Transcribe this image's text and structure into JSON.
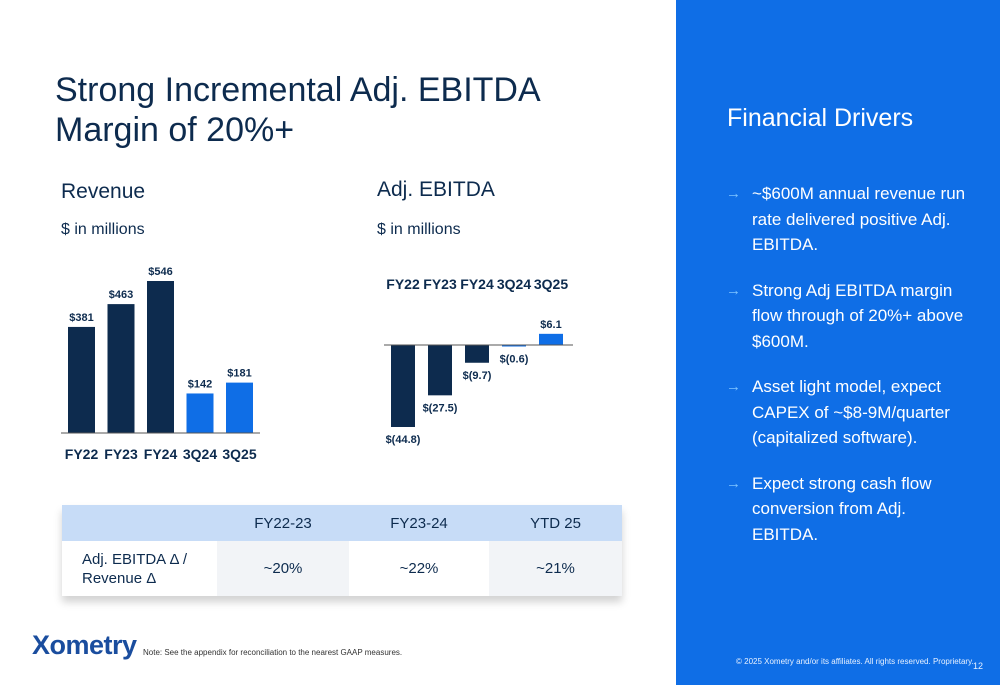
{
  "title_line1": "Strong Incremental Adj. EBITDA",
  "title_line2": "Margin of 20%+",
  "colors": {
    "dark": "#0d2b4e",
    "accent": "#0f6ee6",
    "panel": "#0f6ee6",
    "table_header": "#c7dcf7"
  },
  "chart_data": [
    {
      "type": "bar",
      "title": "Revenue",
      "subtitle": "$ in millions",
      "categories": [
        "FY22",
        "FY23",
        "FY24",
        "3Q24",
        "3Q25"
      ],
      "values": [
        381,
        463,
        546,
        142,
        181
      ],
      "labels": [
        "$381",
        "$463",
        "$546",
        "$142",
        "$181"
      ],
      "highlight": [
        false,
        false,
        false,
        true,
        true
      ],
      "ylim": [
        0,
        546
      ],
      "xlabel": "",
      "ylabel": ""
    },
    {
      "type": "bar",
      "title": "Adj. EBITDA",
      "subtitle": "$ in millions",
      "categories": [
        "FY22",
        "FY23",
        "FY24",
        "3Q24",
        "3Q25"
      ],
      "values": [
        -44.8,
        -27.5,
        -9.7,
        -0.6,
        6.1
      ],
      "labels": [
        "$(44.8)",
        "$(27.5)",
        "$(9.7)",
        "$(0.6)",
        "$6.1"
      ],
      "highlight": [
        false,
        false,
        false,
        true,
        true
      ],
      "ylim": [
        -44.8,
        6.1
      ],
      "xlabel": "",
      "ylabel": ""
    }
  ],
  "table": {
    "headers": [
      "",
      "FY22-23",
      "FY23-24",
      "YTD 25"
    ],
    "row_label_line1": "Adj. EBITDA Δ /",
    "row_label_line2": "Revenue Δ",
    "values": [
      "~20%",
      "~22%",
      "~21%"
    ]
  },
  "logo": "Xometry",
  "note": "Note: See the appendix for reconciliation to the nearest GAAP measures.",
  "panel": {
    "title": "Financial Drivers",
    "arrow": "→",
    "drivers": [
      "~$600M annual revenue run rate delivered positive Adj. EBITDA.",
      "Strong Adj EBITDA margin flow through of 20%+ above $600M.",
      "Asset light model, expect CAPEX of ~$8-9M/quarter (capitalized software).",
      "Expect strong cash flow conversion from Adj. EBITDA."
    ],
    "copyright": "© 2025  Xometry and/or its affiliates. All rights reserved. Proprietary.",
    "page_number": "12"
  }
}
